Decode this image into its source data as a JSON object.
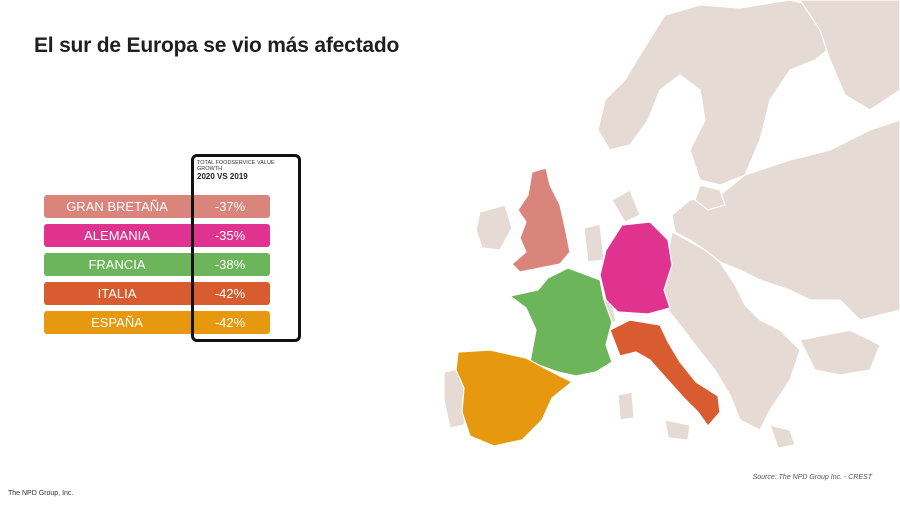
{
  "title": "El sur de Europa se vio más afectado",
  "frame_caption": "TOTAL FOODSERVICE VALUE GROWTH",
  "frame_subtitle": "2020 VS 2019",
  "source": "Source: The NPD Group Inc. - CREST",
  "footer": "The NPD Group, Inc.",
  "colors": {
    "gran_bretana": "#d9857b",
    "alemania": "#e0338f",
    "francia": "#6db55b",
    "italia": "#d95c30",
    "espana": "#e6990e",
    "land": "#e6dad5",
    "border": "#ffffff"
  },
  "chart_data": {
    "type": "table",
    "title": "El sur de Europa se vio más afectado",
    "column_header": "TOTAL FOODSERVICE VALUE GROWTH",
    "column_subheader": "2020 VS 2019",
    "rows": [
      {
        "country": "GRAN BRETAÑA",
        "value": "-37%",
        "color": "#d9857b"
      },
      {
        "country": "ALEMANIA",
        "value": "-35%",
        "color": "#e0338f"
      },
      {
        "country": "FRANCIA",
        "value": "-38%",
        "color": "#6db55b"
      },
      {
        "country": "ITALIA",
        "value": "-42%",
        "color": "#d95c30"
      },
      {
        "country": "ESPAÑA",
        "value": "-42%",
        "color": "#e6990e"
      }
    ]
  }
}
